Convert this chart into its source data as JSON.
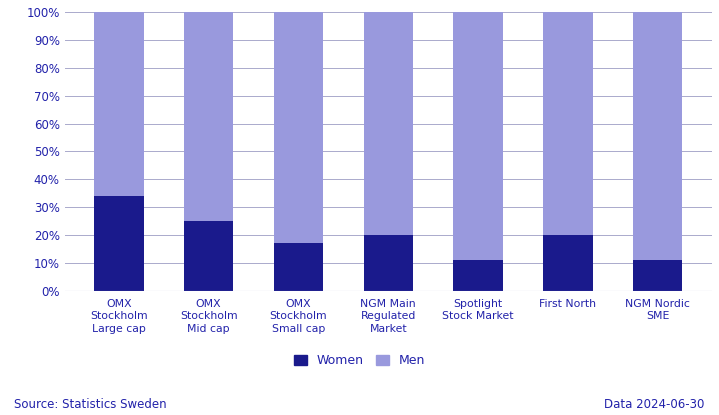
{
  "categories": [
    "OMX\nStockholm\nLarge cap",
    "OMX\nStockholm\nMid cap",
    "OMX\nStockholm\nSmall cap",
    "NGM Main\nRegulated\nMarket",
    "Spotlight\nStock Market",
    "First North",
    "NGM Nordic\nSME"
  ],
  "women": [
    34,
    25,
    17,
    20,
    11,
    20,
    11
  ],
  "men": [
    66,
    75,
    83,
    80,
    89,
    80,
    89
  ],
  "color_women": "#1a1a8c",
  "color_men": "#9999dd",
  "ylim": [
    0,
    100
  ],
  "yticks": [
    0,
    10,
    20,
    30,
    40,
    50,
    60,
    70,
    80,
    90,
    100
  ],
  "yticklabels": [
    "0%",
    "10%",
    "20%",
    "30%",
    "40%",
    "50%",
    "60%",
    "70%",
    "80%",
    "90%",
    "100%"
  ],
  "legend_women": "Women",
  "legend_men": "Men",
  "source_text": "Source: Statistics Sweden",
  "data_text": "Data 2024-06-30",
  "text_color": "#2222aa",
  "grid_color": "#aaaacc",
  "background_color": "#ffffff",
  "bar_width": 0.55
}
